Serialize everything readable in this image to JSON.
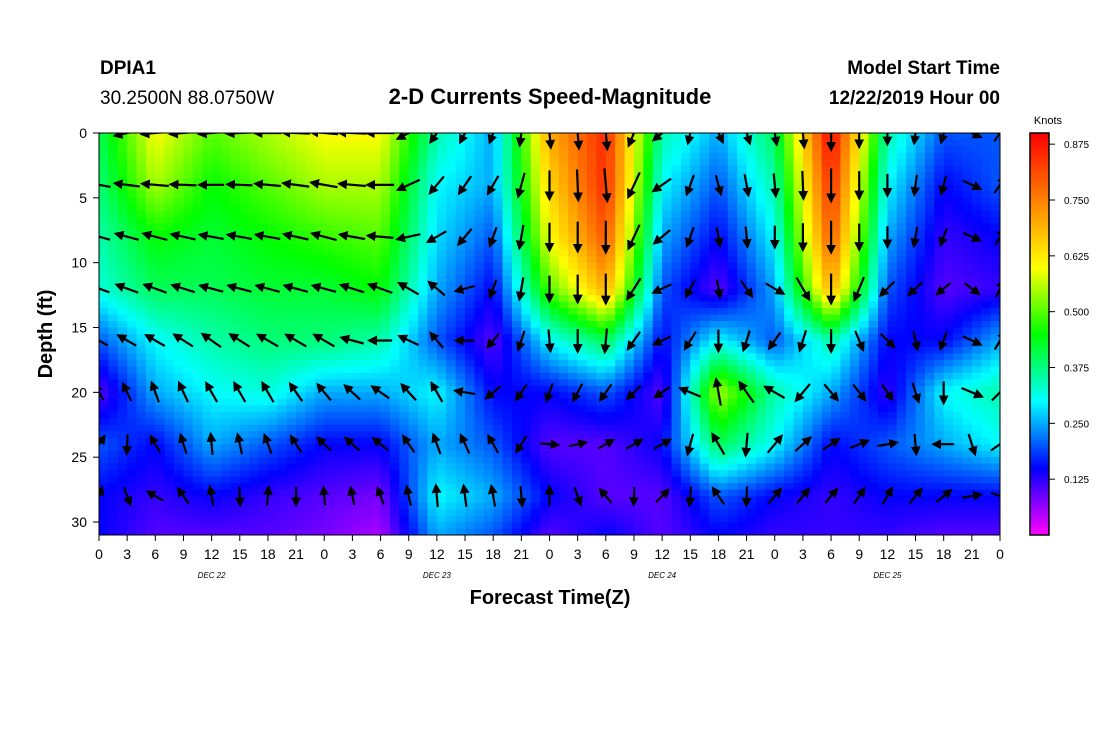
{
  "header": {
    "station": "DPIA1",
    "location": "30.2500N 88.0750W",
    "title": "2-D Currents Speed-Magnitude",
    "model_start_label": "Model Start Time",
    "model_start_value": "12/22/2019 Hour 00"
  },
  "colors": {
    "scale": [
      "#ff00ff",
      "#8000ff",
      "#0000ff",
      "#0080ff",
      "#00ffff",
      "#00ff80",
      "#00ff00",
      "#80ff00",
      "#ffff00",
      "#ffc000",
      "#ff8000",
      "#ff4000",
      "#ff0000"
    ],
    "arrow": "#000000"
  },
  "chart_data": {
    "type": "heatmap",
    "xlabel": "Forecast Time(Z)",
    "ylabel": "Depth (ft)",
    "x_range_hours": [
      0,
      96
    ],
    "y_range_ft": [
      0,
      31
    ],
    "y_reversed": true,
    "x_tick_labels": [
      "0",
      "3",
      "6",
      "9",
      "12",
      "15",
      "18",
      "21",
      "0",
      "3",
      "6",
      "9",
      "12",
      "15",
      "18",
      "21",
      "0",
      "3",
      "6",
      "9",
      "12",
      "15",
      "18",
      "21",
      "0",
      "3",
      "6",
      "9",
      "12",
      "15",
      "18",
      "21",
      "0"
    ],
    "x_ticks_hours": [
      0,
      3,
      6,
      9,
      12,
      15,
      18,
      21,
      24,
      27,
      30,
      33,
      36,
      39,
      42,
      45,
      48,
      51,
      54,
      57,
      60,
      63,
      66,
      69,
      72,
      75,
      78,
      81,
      84,
      87,
      90,
      93,
      96
    ],
    "day_labels": [
      {
        "label": "DEC 22",
        "hour": 12
      },
      {
        "label": "DEC 23",
        "hour": 36
      },
      {
        "label": "DEC 24",
        "hour": 60
      },
      {
        "label": "DEC 25",
        "hour": 84
      }
    ],
    "y_ticks": [
      0,
      5,
      10,
      15,
      20,
      25,
      30
    ],
    "colorbar": {
      "unit": "Knots",
      "range": [
        0,
        0.9
      ],
      "ticks": [
        "0.125",
        "0.250",
        "0.375",
        "0.500",
        "0.625",
        "0.750",
        "0.875"
      ]
    },
    "speed_time_hours": [
      0,
      6,
      12,
      18,
      24,
      30,
      36,
      42,
      48,
      54,
      60,
      66,
      72,
      78,
      84,
      90,
      96
    ],
    "speed_depth_ft": [
      0,
      4,
      8,
      12,
      16,
      20,
      24,
      28,
      31
    ],
    "speed_knots": [
      [
        0.4,
        0.6,
        0.5,
        0.55,
        0.6,
        0.6,
        0.35,
        0.25,
        0.7,
        0.85,
        0.35,
        0.25,
        0.4,
        0.9,
        0.35,
        0.2,
        0.2
      ],
      [
        0.38,
        0.55,
        0.45,
        0.5,
        0.55,
        0.55,
        0.3,
        0.25,
        0.65,
        0.85,
        0.3,
        0.2,
        0.35,
        0.85,
        0.3,
        0.15,
        0.2
      ],
      [
        0.35,
        0.45,
        0.42,
        0.45,
        0.48,
        0.5,
        0.28,
        0.2,
        0.6,
        0.8,
        0.25,
        0.15,
        0.3,
        0.8,
        0.25,
        0.12,
        0.15
      ],
      [
        0.32,
        0.4,
        0.4,
        0.42,
        0.42,
        0.45,
        0.25,
        0.15,
        0.5,
        0.7,
        0.2,
        0.1,
        0.25,
        0.7,
        0.2,
        0.1,
        0.12
      ],
      [
        0.2,
        0.3,
        0.35,
        0.38,
        0.38,
        0.35,
        0.2,
        0.1,
        0.3,
        0.4,
        0.15,
        0.3,
        0.2,
        0.35,
        0.15,
        0.15,
        0.25
      ],
      [
        0.1,
        0.25,
        0.3,
        0.32,
        0.25,
        0.25,
        0.3,
        0.15,
        0.15,
        0.2,
        0.1,
        0.55,
        0.35,
        0.25,
        0.12,
        0.3,
        0.35
      ],
      [
        0.2,
        0.15,
        0.25,
        0.2,
        0.15,
        0.15,
        0.25,
        0.2,
        0.1,
        0.1,
        0.15,
        0.4,
        0.3,
        0.15,
        0.2,
        0.25,
        0.3
      ],
      [
        0.15,
        0.12,
        0.15,
        0.12,
        0.1,
        0.08,
        0.3,
        0.25,
        0.15,
        0.1,
        0.1,
        0.2,
        0.15,
        0.12,
        0.15,
        0.15,
        0.15
      ],
      [
        0.15,
        0.1,
        0.1,
        0.1,
        0.08,
        0.05,
        0.25,
        0.2,
        0.1,
        0.15,
        0.1,
        0.15,
        0.12,
        0.12,
        0.12,
        0.1,
        0.1
      ]
    ],
    "vector_time_hours": [
      0,
      6,
      12,
      18,
      24,
      30,
      36,
      42,
      48,
      54,
      60,
      66,
      72,
      78,
      84,
      90,
      96
    ],
    "vector_depth_ft": [
      0,
      4,
      8,
      12,
      16,
      20,
      24,
      28
    ],
    "vector_direction_deg": [
      [
        250,
        265,
        265,
        270,
        275,
        270,
        215,
        200,
        175,
        175,
        230,
        155,
        170,
        180,
        180,
        195,
        35
      ],
      [
        280,
        275,
        270,
        275,
        280,
        270,
        220,
        210,
        180,
        175,
        235,
        165,
        175,
        180,
        180,
        195,
        35
      ],
      [
        285,
        285,
        280,
        280,
        285,
        275,
        240,
        200,
        180,
        180,
        230,
        170,
        180,
        180,
        180,
        200,
        30
      ],
      [
        290,
        290,
        285,
        285,
        285,
        290,
        310,
        200,
        180,
        180,
        245,
        170,
        120,
        180,
        225,
        230,
        25
      ],
      [
        300,
        300,
        305,
        300,
        300,
        270,
        320,
        220,
        175,
        185,
        245,
        180,
        215,
        180,
        135,
        200,
        30
      ],
      [
        330,
        340,
        330,
        330,
        320,
        305,
        330,
        230,
        200,
        215,
        235,
        350,
        300,
        140,
        145,
        180,
        45
      ],
      [
        35,
        330,
        355,
        340,
        315,
        310,
        340,
        330,
        95,
        60,
        60,
        330,
        40,
        55,
        80,
        270,
        55
      ],
      [
        20,
        300,
        350,
        5,
        355,
        340,
        355,
        350,
        0,
        320,
        45,
        325,
        40,
        40,
        30,
        50,
        110
      ]
    ],
    "vector_speed_knots": [
      [
        0.4,
        0.6,
        0.5,
        0.55,
        0.6,
        0.6,
        0.35,
        0.25,
        0.7,
        0.85,
        0.35,
        0.25,
        0.4,
        0.9,
        0.35,
        0.2,
        0.2
      ],
      [
        0.38,
        0.55,
        0.45,
        0.5,
        0.55,
        0.55,
        0.3,
        0.25,
        0.65,
        0.85,
        0.3,
        0.2,
        0.35,
        0.85,
        0.3,
        0.15,
        0.2
      ],
      [
        0.35,
        0.45,
        0.42,
        0.45,
        0.48,
        0.5,
        0.28,
        0.2,
        0.6,
        0.8,
        0.25,
        0.15,
        0.3,
        0.8,
        0.25,
        0.12,
        0.15
      ],
      [
        0.32,
        0.4,
        0.4,
        0.42,
        0.42,
        0.45,
        0.25,
        0.15,
        0.5,
        0.7,
        0.2,
        0.1,
        0.25,
        0.7,
        0.2,
        0.1,
        0.12
      ],
      [
        0.2,
        0.3,
        0.35,
        0.38,
        0.38,
        0.35,
        0.2,
        0.1,
        0.3,
        0.4,
        0.15,
        0.3,
        0.2,
        0.35,
        0.15,
        0.15,
        0.25
      ],
      [
        0.1,
        0.25,
        0.3,
        0.32,
        0.25,
        0.25,
        0.3,
        0.15,
        0.15,
        0.2,
        0.1,
        0.55,
        0.35,
        0.25,
        0.12,
        0.3,
        0.35
      ],
      [
        0.2,
        0.15,
        0.25,
        0.2,
        0.15,
        0.15,
        0.25,
        0.2,
        0.1,
        0.1,
        0.15,
        0.4,
        0.3,
        0.15,
        0.2,
        0.25,
        0.3
      ],
      [
        0.15,
        0.12,
        0.15,
        0.12,
        0.1,
        0.08,
        0.3,
        0.25,
        0.15,
        0.1,
        0.1,
        0.2,
        0.15,
        0.12,
        0.15,
        0.15,
        0.15
      ]
    ]
  }
}
